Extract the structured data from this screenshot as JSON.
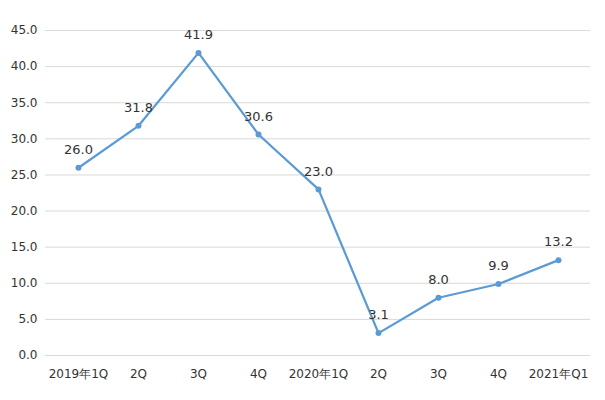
{
  "chart_data": {
    "type": "line",
    "categories": [
      "2019年1Q",
      "2Q",
      "3Q",
      "4Q",
      "2020年1Q",
      "2Q",
      "3Q",
      "4Q",
      "2021年Q1"
    ],
    "values": [
      26.0,
      31.8,
      41.9,
      30.6,
      23.0,
      3.1,
      8.0,
      9.9,
      13.2
    ],
    "value_labels": [
      "26.0",
      "31.8",
      "41.9",
      "30.6",
      "23.0",
      "3.1",
      "8.0",
      "9.9",
      "13.2"
    ],
    "color": "#5b9bd5",
    "marker": "circle",
    "ylim": [
      0,
      45
    ],
    "yticks": [
      {
        "value": 0,
        "label": "0.0"
      },
      {
        "value": 5,
        "label": "5.0"
      },
      {
        "value": 10,
        "label": "10.0"
      },
      {
        "value": 15,
        "label": "15.0"
      },
      {
        "value": 20,
        "label": "20.0"
      },
      {
        "value": 25,
        "label": "25.0"
      },
      {
        "value": 30,
        "label": "30.0"
      },
      {
        "value": 35,
        "label": "35.0"
      },
      {
        "value": 40,
        "label": "40.0"
      },
      {
        "value": 45,
        "label": "45.0"
      }
    ],
    "grid": true,
    "data_labels": true
  }
}
